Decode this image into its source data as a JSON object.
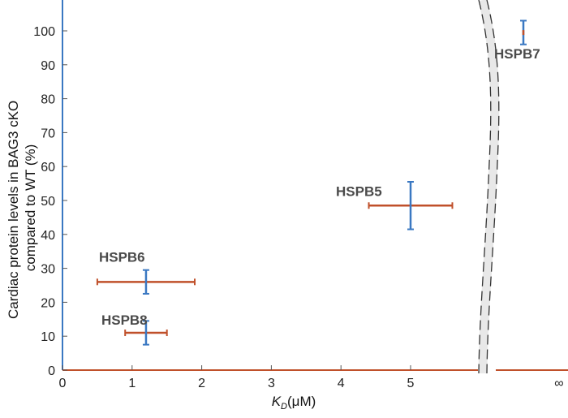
{
  "chart_data": {
    "type": "scatter",
    "title": "",
    "xlabel": "K",
    "xlabel_subscript": "D",
    "xlabel_unit": "(μM)",
    "ylabel_lines": [
      "Cardiac protein levels in BAG3 cKO",
      "compared to WT (%)"
    ],
    "xlim": [
      0,
      6
    ],
    "ylim": [
      0,
      105
    ],
    "x_ticks": [
      0,
      1,
      2,
      3,
      4,
      5
    ],
    "x_tick_labels": [
      "0",
      "1",
      "2",
      "3",
      "4",
      "5"
    ],
    "x_infinity_label": "∞",
    "y_ticks": [
      0,
      10,
      20,
      30,
      40,
      50,
      60,
      70,
      80,
      90,
      100
    ],
    "y_tick_labels": [
      "0",
      "10",
      "20",
      "30",
      "40",
      "50",
      "60",
      "70",
      "80",
      "90",
      "100"
    ],
    "axis_break": true,
    "grid": false,
    "legend": "none",
    "colors": {
      "x_error": "#c0502a",
      "y_error": "#3a78c2",
      "axis": "#3a78c2",
      "baseline": "#c0502a",
      "break": "#e8e8e8"
    },
    "points": [
      {
        "name": "HSPB8",
        "x": 1.2,
        "y": 11,
        "x_err": [
          0.9,
          1.5
        ],
        "y_err": [
          7.5,
          14.5
        ]
      },
      {
        "name": "HSPB6",
        "x": 1.2,
        "y": 26,
        "x_err": [
          0.5,
          1.9
        ],
        "y_err": [
          22.5,
          29.5
        ]
      },
      {
        "name": "HSPB5",
        "x": 5.0,
        "y": 48.5,
        "x_err": [
          4.4,
          5.6
        ],
        "y_err": [
          41.5,
          55.5
        ]
      },
      {
        "name": "HSPB7",
        "x": "∞",
        "y": 99.5,
        "x_err": null,
        "y_err": [
          96,
          103
        ]
      }
    ]
  }
}
